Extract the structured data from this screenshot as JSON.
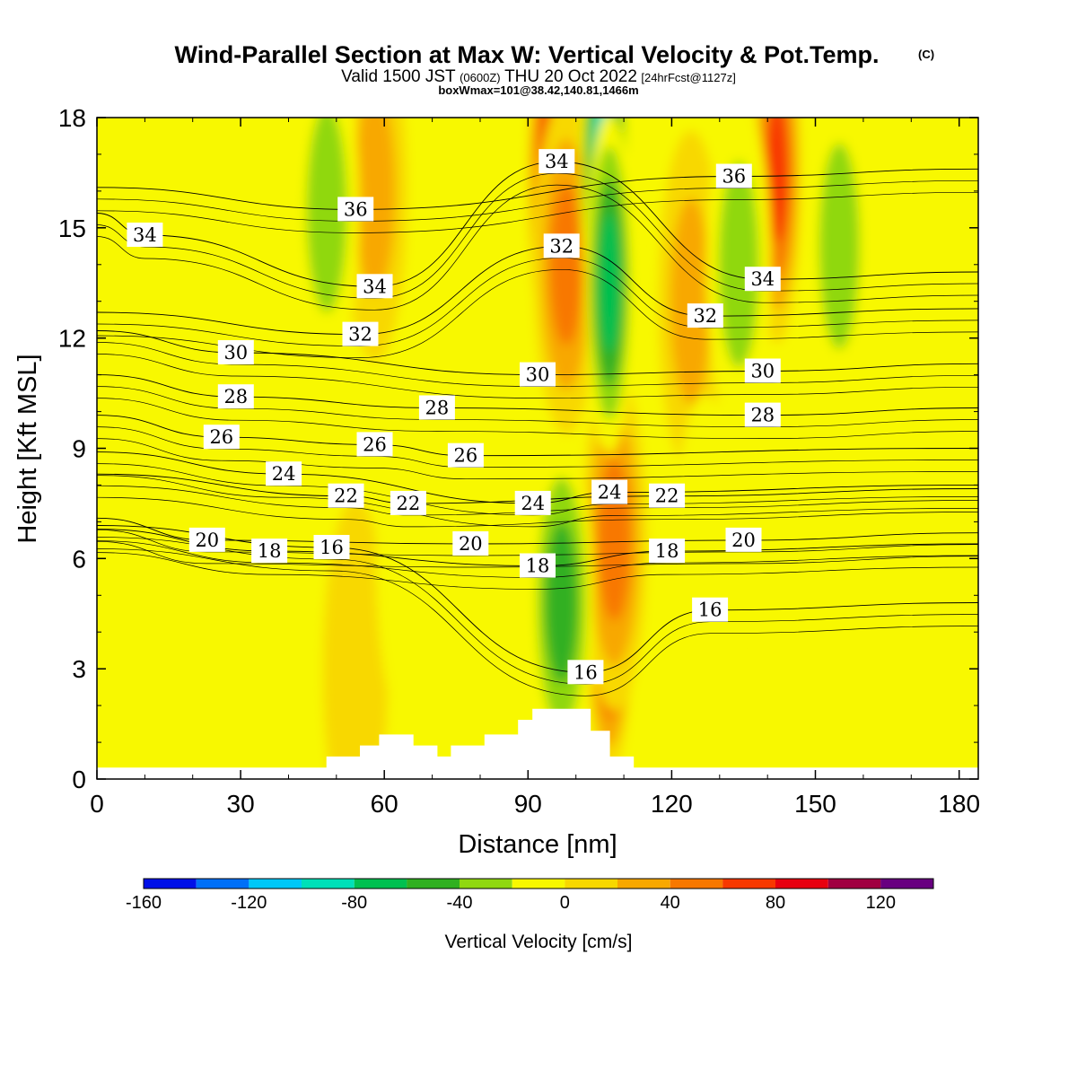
{
  "title": {
    "main": "Wind-Parallel Section at Max W: Vertical Velocity & Pot.Temp.",
    "copyright": "(C)",
    "valid_prefix": "Valid 1500 JST",
    "valid_utc": "(0600Z)",
    "valid_date": "THU 20 Oct 2022",
    "forecast": "[24hrFcst@1127z]",
    "box_info": "boxWmax=101@38.42,140.81,1466m"
  },
  "chart_data": {
    "type": "heatmap",
    "xlabel": "Distance [nm]",
    "ylabel": "Height [Kft MSL]",
    "xlim": [
      0,
      184
    ],
    "ylim": [
      0,
      18
    ],
    "x_ticks": [
      "0",
      "30",
      "60",
      "90",
      "120",
      "150",
      "180"
    ],
    "y_ticks": [
      "0",
      "3",
      "6",
      "9",
      "12",
      "15",
      "18"
    ],
    "colorbar": {
      "label": "Vertical Velocity [cm/s]",
      "levels": [
        -160,
        -140,
        -120,
        -100,
        -80,
        -60,
        -40,
        -20,
        0,
        20,
        40,
        60,
        80,
        100,
        120,
        140
      ],
      "colors": [
        "#0010e8",
        "#0070f8",
        "#00c8f8",
        "#00e0b8",
        "#00c050",
        "#30b020",
        "#90d810",
        "#f8f800",
        "#f8d800",
        "#f8a800",
        "#f87800",
        "#f83800",
        "#e80010",
        "#a00040",
        "#680080"
      ],
      "tick_labels": [
        "-160",
        "-120",
        "-80",
        "-40",
        "0",
        "40",
        "80",
        "120"
      ]
    },
    "terrain_kft": [
      [
        0,
        0.3
      ],
      [
        48,
        0.3
      ],
      [
        48,
        0.6
      ],
      [
        55,
        0.6
      ],
      [
        55,
        0.9
      ],
      [
        59,
        0.9
      ],
      [
        59,
        1.2
      ],
      [
        66,
        1.2
      ],
      [
        66,
        0.9
      ],
      [
        71,
        0.9
      ],
      [
        71,
        0.6
      ],
      [
        74,
        0.6
      ],
      [
        74,
        0.9
      ],
      [
        81,
        0.9
      ],
      [
        81,
        1.2
      ],
      [
        88,
        1.2
      ],
      [
        88,
        1.6
      ],
      [
        91,
        1.6
      ],
      [
        91,
        1.9
      ],
      [
        103,
        1.9
      ],
      [
        103,
        1.3
      ],
      [
        107,
        1.3
      ],
      [
        107,
        0.6
      ],
      [
        112,
        0.6
      ],
      [
        112,
        0.3
      ],
      [
        184,
        0.3
      ]
    ],
    "vertical_velocity_features": [
      {
        "x": 95,
        "z": 16.3,
        "value": 100
      },
      {
        "x": 98,
        "z": 14.0,
        "value": 60
      },
      {
        "x": 107,
        "z": 4.8,
        "value": 100
      },
      {
        "x": 108,
        "z": 6.5,
        "value": 60
      },
      {
        "x": 106,
        "z": 16.5,
        "value": -120
      },
      {
        "x": 107,
        "z": 13.5,
        "value": -80
      },
      {
        "x": 97,
        "z": 4.8,
        "value": -60
      },
      {
        "x": 58,
        "z": 16.0,
        "value": 30
      },
      {
        "x": 142,
        "z": 16.5,
        "value": 70
      },
      {
        "x": 124,
        "z": 13.0,
        "value": 40
      },
      {
        "x": 54,
        "z": 3.0,
        "value": 25
      },
      {
        "x": 48,
        "z": 15.5,
        "value": -30
      },
      {
        "x": 134,
        "z": 14.0,
        "value": -30
      },
      {
        "x": 155,
        "z": 14.5,
        "value": -30
      },
      {
        "x": 65,
        "z": 6.0,
        "value": -25
      },
      {
        "x": 127,
        "z": 5.8,
        "value": -25
      },
      {
        "x": 145,
        "z": 5.0,
        "value": -25
      }
    ],
    "theta_contour_labels": [
      {
        "value": "36",
        "x": 54,
        "z": 15.5
      },
      {
        "value": "36",
        "x": 133,
        "z": 16.4
      },
      {
        "value": "34",
        "x": 10,
        "z": 14.8
      },
      {
        "value": "34",
        "x": 58,
        "z": 13.4
      },
      {
        "value": "34",
        "x": 96,
        "z": 16.8
      },
      {
        "value": "34",
        "x": 139,
        "z": 13.6
      },
      {
        "value": "32",
        "x": 55,
        "z": 12.1
      },
      {
        "value": "32",
        "x": 97,
        "z": 14.5
      },
      {
        "value": "32",
        "x": 127,
        "z": 12.6
      },
      {
        "value": "30",
        "x": 29,
        "z": 11.6
      },
      {
        "value": "30",
        "x": 92,
        "z": 11.0
      },
      {
        "value": "30",
        "x": 139,
        "z": 11.1
      },
      {
        "value": "28",
        "x": 29,
        "z": 10.4
      },
      {
        "value": "28",
        "x": 71,
        "z": 10.1
      },
      {
        "value": "28",
        "x": 139,
        "z": 9.9
      },
      {
        "value": "26",
        "x": 26,
        "z": 9.3
      },
      {
        "value": "26",
        "x": 58,
        "z": 9.1
      },
      {
        "value": "26",
        "x": 77,
        "z": 8.8
      },
      {
        "value": "24",
        "x": 39,
        "z": 8.3
      },
      {
        "value": "24",
        "x": 91,
        "z": 7.5
      },
      {
        "value": "24",
        "x": 107,
        "z": 7.8
      },
      {
        "value": "22",
        "x": 52,
        "z": 7.7
      },
      {
        "value": "22",
        "x": 65,
        "z": 7.5
      },
      {
        "value": "22",
        "x": 119,
        "z": 7.7
      },
      {
        "value": "20",
        "x": 23,
        "z": 6.5
      },
      {
        "value": "20",
        "x": 78,
        "z": 6.4
      },
      {
        "value": "20",
        "x": 135,
        "z": 6.5
      },
      {
        "value": "18",
        "x": 36,
        "z": 6.2
      },
      {
        "value": "18",
        "x": 92,
        "z": 5.8
      },
      {
        "value": "18",
        "x": 119,
        "z": 6.2
      },
      {
        "value": "16",
        "x": 49,
        "z": 6.3
      },
      {
        "value": "16",
        "x": 102,
        "z": 2.9
      },
      {
        "value": "16",
        "x": 128,
        "z": 4.6
      }
    ]
  }
}
